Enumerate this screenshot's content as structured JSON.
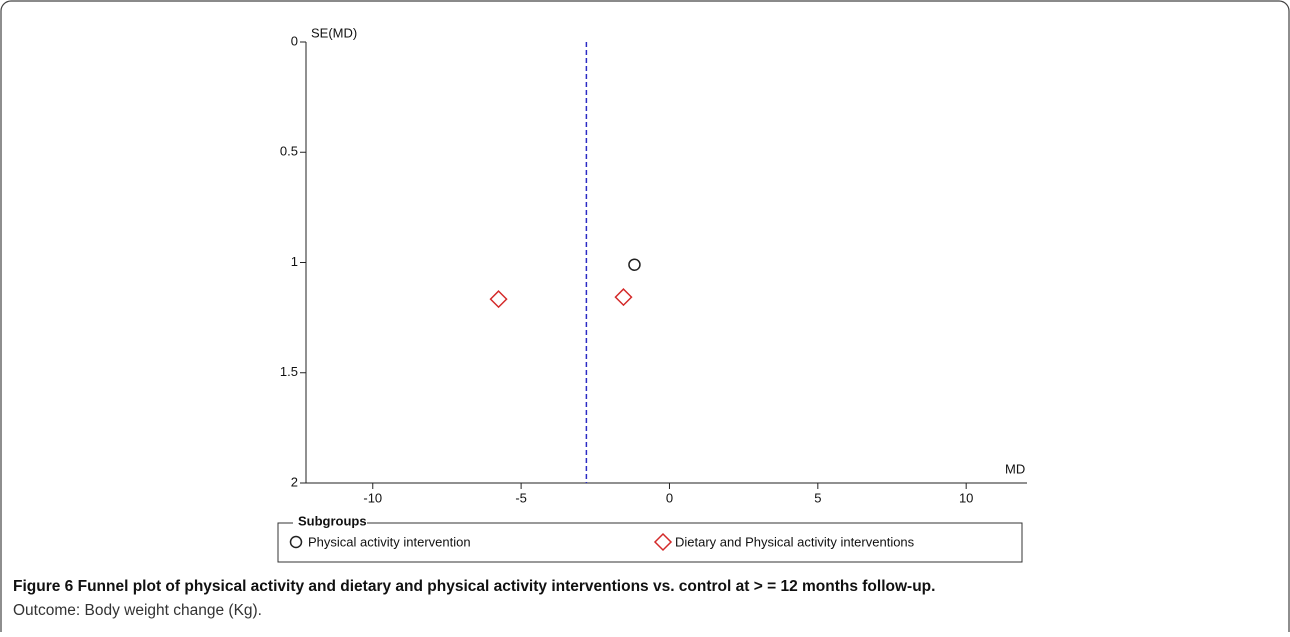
{
  "chart_data": {
    "type": "scatter",
    "y_label": "SE(MD)",
    "x_label": "MD",
    "xlim": [
      -12.25,
      12.05
    ],
    "xticks": [
      -10,
      -5,
      0,
      5,
      10
    ],
    "ylim": [
      0,
      2
    ],
    "yticks": [
      0,
      0.5,
      1,
      1.5,
      2
    ],
    "y_inverted": true,
    "reference_x": -2.8,
    "reference_color": "#2b2bc4",
    "legend_title": "Subgroups",
    "series": [
      {
        "name": "Physical activity intervention",
        "color": "#222222",
        "marker": "circle",
        "x": [
          -1.18
        ],
        "values": [
          1.01
        ]
      },
      {
        "name": "Dietary and Physical activity interventions",
        "color": "#d42a2a",
        "marker": "diamond",
        "x": [
          -5.76,
          -1.55
        ],
        "values": [
          1.166,
          1.157
        ]
      }
    ],
    "caption_title": "Figure 6 Funnel plot of physical activity and dietary and physical activity interventions vs. control at > = 12 months follow-up.",
    "caption_text": "Outcome: Body weight change (Kg)."
  }
}
